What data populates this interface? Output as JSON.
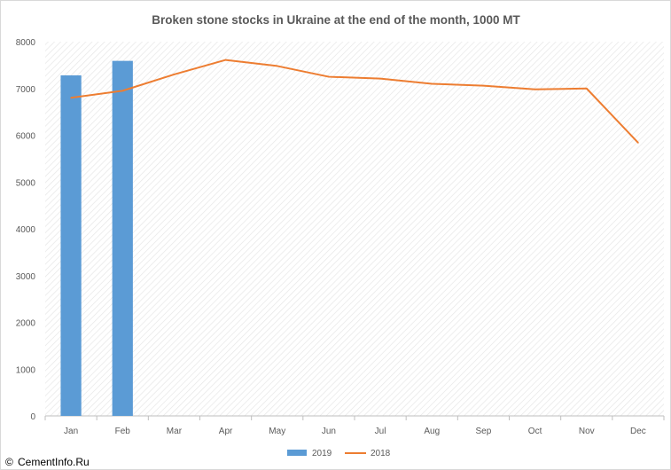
{
  "chart_data": {
    "type": "bar",
    "title": "Broken stone stocks in Ukraine at the end of the month, 1000 MT",
    "xlabel": "",
    "ylabel": "",
    "categories": [
      "Jan",
      "Feb",
      "Mar",
      "Apr",
      "May",
      "Jun",
      "Jul",
      "Aug",
      "Sep",
      "Oct",
      "Nov",
      "Dec"
    ],
    "ylim": [
      0,
      8000
    ],
    "yticks": [
      "0",
      "1000",
      "2000",
      "3000",
      "4000",
      "5000",
      "6000",
      "7000",
      "8000"
    ],
    "grid": "hatched plot area",
    "legend_position": "bottom",
    "series": [
      {
        "name": "2019",
        "type": "bar",
        "color": "#5b9bd5",
        "values": [
          7280,
          7590,
          null,
          null,
          null,
          null,
          null,
          null,
          null,
          null,
          null,
          null
        ]
      },
      {
        "name": "2018",
        "type": "line",
        "color": "#ed7d31",
        "values": [
          6800,
          6950,
          7300,
          7610,
          7480,
          7250,
          7210,
          7100,
          7060,
          6980,
          7000,
          5840
        ]
      }
    ]
  },
  "watermark": {
    "copyright_symbol": "©",
    "text": "CementInfo.Ru"
  }
}
